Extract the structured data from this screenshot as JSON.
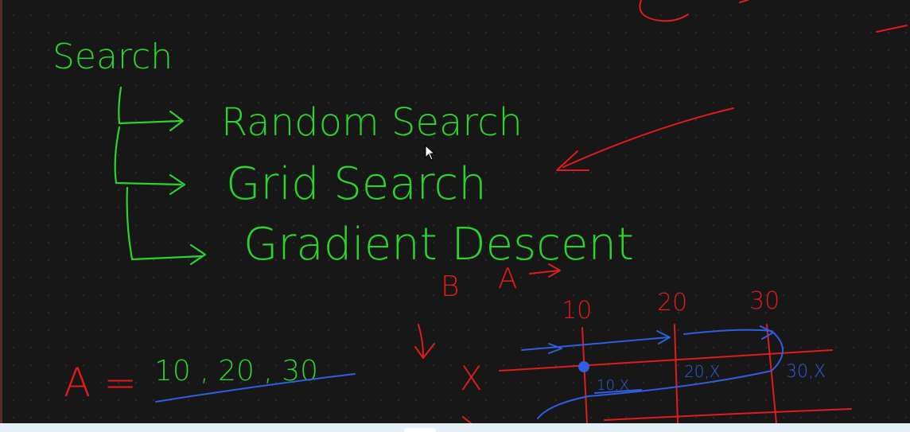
{
  "notes": {
    "title": "Search",
    "methods": [
      "Random Search",
      "Grid Search",
      "Gradient Descent"
    ],
    "labels": {
      "b": "B",
      "a": "A",
      "a_equals": "A =",
      "a_values": "10 , 20 , 30",
      "col_10": "10",
      "col_20": "20",
      "col_30": "30",
      "row_x": "X",
      "cell_1": "10,X",
      "cell_2": "20,X",
      "cell_3": "30,X"
    }
  },
  "colors": {
    "green": "#2bd42b",
    "red": "#e01c1c",
    "blue": "#2f5fe0",
    "background": "#171717"
  },
  "icons": {
    "cursor": "arrow-pointer-icon"
  }
}
